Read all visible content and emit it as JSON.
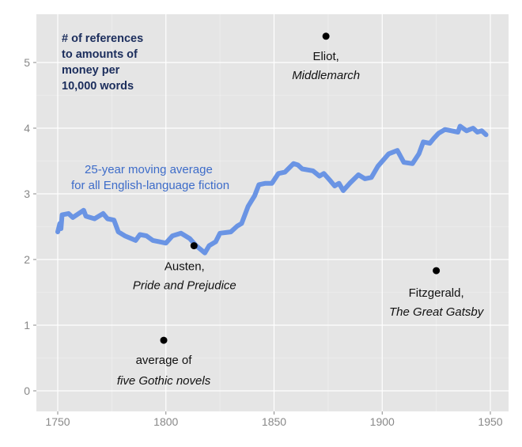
{
  "chart_data": {
    "type": "line",
    "title": "",
    "ylabel_lines": [
      "# of references",
      "to amounts of",
      "money per",
      "10,000 words"
    ],
    "xlabel": "",
    "xlim": [
      1745,
      1955
    ],
    "ylim": [
      -0.3,
      5.7
    ],
    "x_ticks": [
      1750,
      1800,
      1850,
      1900,
      1950
    ],
    "y_ticks": [
      0,
      1,
      2,
      3,
      4,
      5
    ],
    "grid": true,
    "colors": {
      "panel": "#e5e5e5",
      "grid": "#ffffff",
      "line": "#6a94e4",
      "points": "#000000",
      "ylabel": "#1b2d5c",
      "series_label": "#3d6cc9"
    },
    "series": [
      {
        "label_lines": [
          "25-year moving average",
          "for all English-language fiction"
        ],
        "x": [
          1750,
          1751,
          1751.5,
          1752,
          1755,
          1757,
          1762,
          1763,
          1767,
          1769,
          1771,
          1773,
          1776,
          1778,
          1781,
          1786,
          1788,
          1791,
          1794,
          1797,
          1800,
          1803,
          1807,
          1811,
          1814,
          1818,
          1820,
          1823,
          1825,
          1830,
          1833,
          1835,
          1838,
          1841,
          1843,
          1846,
          1849,
          1852,
          1855,
          1859,
          1861,
          1863,
          1868,
          1871,
          1873,
          1876,
          1878,
          1880,
          1882,
          1885,
          1889,
          1892,
          1895,
          1898,
          1903,
          1907,
          1910,
          1914,
          1917,
          1919,
          1922,
          1924,
          1926,
          1929,
          1932,
          1935,
          1936,
          1939,
          1942,
          1944,
          1946,
          1948
        ],
        "y": [
          2.42,
          2.55,
          2.47,
          2.68,
          2.7,
          2.64,
          2.75,
          2.66,
          2.62,
          2.66,
          2.7,
          2.62,
          2.6,
          2.42,
          2.36,
          2.29,
          2.38,
          2.36,
          2.29,
          2.27,
          2.25,
          2.36,
          2.4,
          2.32,
          2.21,
          2.1,
          2.21,
          2.27,
          2.4,
          2.42,
          2.51,
          2.55,
          2.81,
          2.97,
          3.14,
          3.16,
          3.16,
          3.31,
          3.33,
          3.46,
          3.44,
          3.38,
          3.35,
          3.27,
          3.31,
          3.2,
          3.12,
          3.16,
          3.05,
          3.16,
          3.29,
          3.23,
          3.25,
          3.42,
          3.61,
          3.66,
          3.48,
          3.46,
          3.61,
          3.79,
          3.77,
          3.85,
          3.92,
          3.98,
          3.96,
          3.94,
          4.03,
          3.96,
          4.0,
          3.94,
          3.96,
          3.9
        ]
      }
    ],
    "points": [
      {
        "x": 1874,
        "y": 5.4,
        "label": "Eliot,",
        "title": "Middlemarch"
      },
      {
        "x": 1813,
        "y": 2.21,
        "label": "Austen,",
        "title": "Pride and Prejudice"
      },
      {
        "x": 1925,
        "y": 1.83,
        "label": "Fitzgerald,",
        "title": "The Great Gatsby"
      },
      {
        "x": 1799,
        "y": 0.77,
        "label": "average of",
        "title": "five Gothic novels"
      }
    ]
  }
}
